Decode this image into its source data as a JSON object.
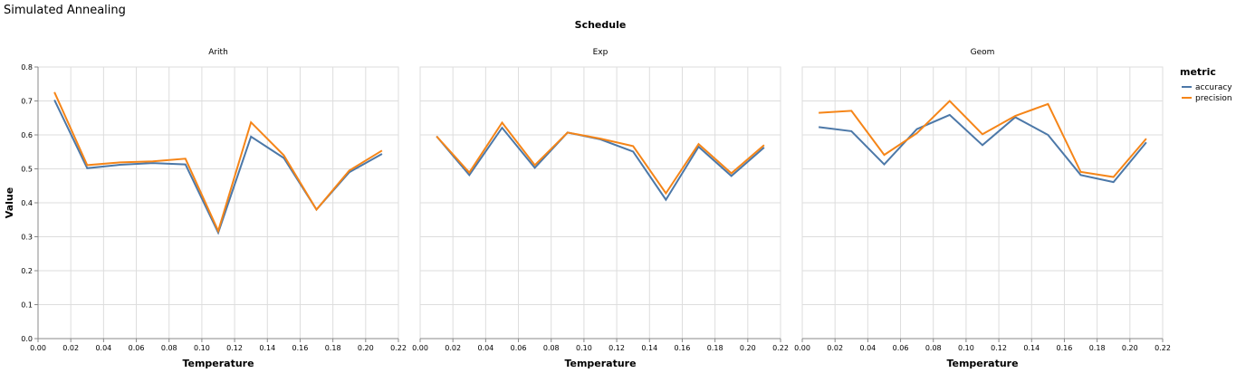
{
  "chart_data": {
    "type": "line",
    "title": "Simulated Annealing",
    "facet_header": "Schedule",
    "xlabel": "Temperature",
    "ylabel": "Value",
    "xlim": [
      0,
      0.22
    ],
    "ylim": [
      0,
      0.8
    ],
    "x_ticks": [
      "0.00",
      "0.02",
      "0.04",
      "0.06",
      "0.08",
      "0.10",
      "0.12",
      "0.14",
      "0.16",
      "0.18",
      "0.20",
      "0.22"
    ],
    "y_ticks": [
      "0.0",
      "0.1",
      "0.2",
      "0.3",
      "0.4",
      "0.5",
      "0.6",
      "0.7",
      "0.8"
    ],
    "grid": true,
    "legend": {
      "title": "metric",
      "placement": "right",
      "entries": [
        {
          "name": "accuracy",
          "color": "#4c78a8"
        },
        {
          "name": "precision",
          "color": "#f58518"
        }
      ]
    },
    "x": [
      0.01,
      0.03,
      0.05,
      0.07,
      0.09,
      0.11,
      0.13,
      0.15,
      0.17,
      0.19,
      0.21
    ],
    "panels": [
      {
        "title": "Arith",
        "series": [
          {
            "name": "accuracy",
            "values": [
              0.703,
              0.502,
              0.512,
              0.517,
              0.513,
              0.312,
              0.595,
              0.532,
              0.38,
              0.49,
              0.544
            ]
          },
          {
            "name": "precision",
            "values": [
              0.726,
              0.511,
              0.519,
              0.522,
              0.53,
              0.317,
              0.637,
              0.54,
              0.38,
              0.495,
              0.554
            ]
          }
        ]
      },
      {
        "title": "Exp",
        "series": [
          {
            "name": "accuracy",
            "values": [
              0.596,
              0.482,
              0.621,
              0.503,
              0.607,
              0.587,
              0.551,
              0.409,
              0.565,
              0.479,
              0.563
            ]
          },
          {
            "name": "precision",
            "values": [
              0.596,
              0.489,
              0.636,
              0.511,
              0.607,
              0.589,
              0.567,
              0.428,
              0.573,
              0.487,
              0.57
            ]
          }
        ]
      },
      {
        "title": "Geom",
        "series": [
          {
            "name": "accuracy",
            "values": [
              0.623,
              0.611,
              0.513,
              0.617,
              0.659,
              0.57,
              0.652,
              0.6,
              0.482,
              0.461,
              0.578
            ]
          },
          {
            "name": "precision",
            "values": [
              0.665,
              0.671,
              0.541,
              0.605,
              0.7,
              0.602,
              0.656,
              0.691,
              0.491,
              0.476,
              0.589
            ]
          }
        ]
      }
    ]
  }
}
